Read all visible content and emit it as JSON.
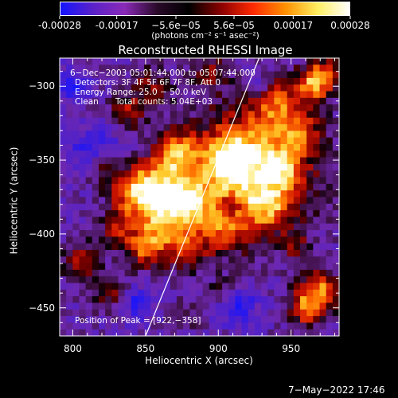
{
  "colorbar": {
    "tick_labels": [
      "-0.00028",
      "-0.00017",
      "−5.6e−05",
      "5.6e−05",
      "0.00017",
      "0.00028"
    ],
    "tick_values": [
      -0.00028,
      -0.00017,
      -5.6e-05,
      5.6e-05,
      0.00017,
      0.00028
    ],
    "unit_label": "(photons cm⁻² s⁻¹ asec⁻²)",
    "colors": [
      "#1414ff",
      "#5a22c8",
      "#8a2ab8",
      "#2a0a2a",
      "#000000",
      "#8a0000",
      "#ff2a00",
      "#ff9000",
      "#ffee60",
      "#ffffff"
    ]
  },
  "title": "Reconstructed RHESSI Image",
  "annotations": {
    "time_range": "6−Dec−2003 05:01:44.000 to 05:07:44.000",
    "detectors": "Detectors: 3F 4F 5F 6F 7F 8F, Att 0",
    "energy": "Energy Range: 25.0 − 50.0 keV",
    "method": "Clean",
    "counts": "Total counts: 5.04E+03",
    "peak": "Position of Peak = [922,−358]"
  },
  "footer_date": "7−May−2022 17:46",
  "chart_data": {
    "type": "heatmap",
    "title": "Reconstructed RHESSI Image",
    "xlabel": "Heliocentric X (arcsec)",
    "ylabel": "Heliocentric Y (arcsec)",
    "xlim": [
      791,
      983
    ],
    "ylim": [
      -469,
      -281
    ],
    "x_ticks": [
      800,
      850,
      900,
      950
    ],
    "y_ticks": [
      -300,
      -350,
      -400,
      -450
    ],
    "x_tick_labels": [
      "800",
      "850",
      "900",
      "950"
    ],
    "y_tick_labels": [
      "−300",
      "−350",
      "−400",
      "−450"
    ],
    "peak_position": [
      922,
      -358
    ],
    "limb_line": [
      [
        850,
        -470
      ],
      [
        928,
        -280
      ]
    ],
    "value_range": [
      -0.00028,
      0.00028
    ]
  }
}
